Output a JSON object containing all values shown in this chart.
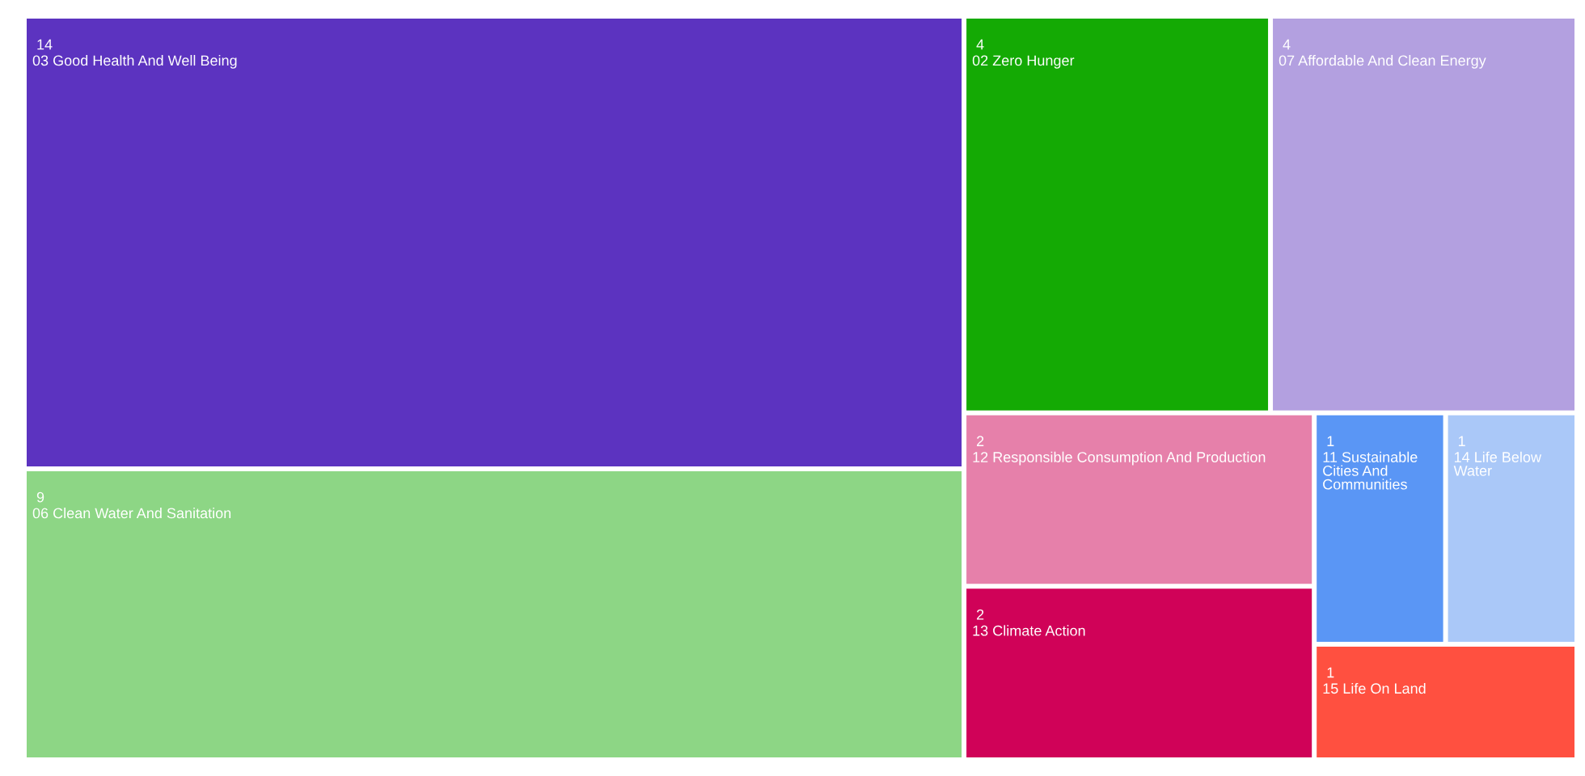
{
  "chart_data": {
    "type": "other",
    "categories": [
      "03 Good Health And Well Being",
      "06 Clean Water And Sanitation",
      "02 Zero Hunger",
      "07 Affordable And Clean Energy",
      "12 Responsible Consumption And Production",
      "13 Climate Action",
      "11 Sustainable Cities And Communities",
      "14 Life Below Water",
      "15 Life On Land"
    ],
    "values": [
      14,
      9,
      4,
      4,
      2,
      2,
      1,
      1,
      1
    ],
    "colors": [
      "#5c33c0",
      "#8dd685",
      "#14aa04",
      "#b3a0e0",
      "#e680aa",
      "#d00258",
      "#5a96f5",
      "#aac8f8",
      "#ff5040"
    ],
    "data_labels": true
  }
}
